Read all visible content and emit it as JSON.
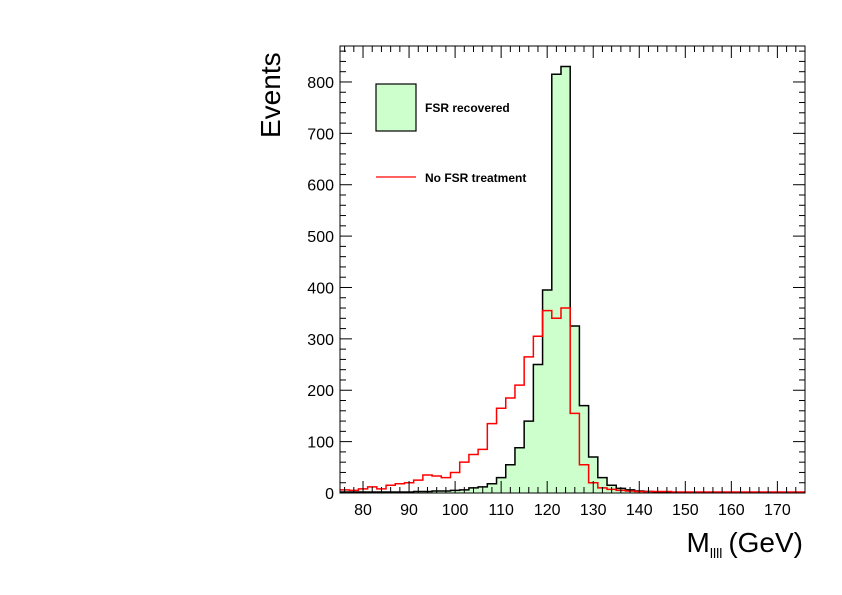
{
  "chart_data": {
    "type": "histogram",
    "xlabel": "M",
    "xlabel_subscript": "llll",
    "xlabel_unit": "(GeV)",
    "ylabel": "Events",
    "xlim": [
      75,
      176
    ],
    "ylim": [
      0,
      870
    ],
    "x_ticks": [
      80,
      90,
      100,
      110,
      120,
      130,
      140,
      150,
      160,
      170
    ],
    "y_ticks": [
      0,
      100,
      200,
      300,
      400,
      500,
      600,
      700,
      800
    ],
    "bin_width": 2,
    "bin_start": 75,
    "legend_position": "top-left",
    "series": [
      {
        "name": "FSR recovered",
        "style": "filled",
        "fill": "#ccffcc",
        "stroke": "#000000",
        "values": [
          2,
          2,
          2,
          2,
          2,
          2,
          2,
          2,
          3,
          3,
          4,
          4,
          5,
          6,
          10,
          12,
          18,
          30,
          55,
          88,
          140,
          250,
          395,
          815,
          830,
          325,
          170,
          70,
          30,
          15,
          9,
          6,
          4,
          3,
          2,
          2,
          1,
          1,
          1,
          1,
          1,
          1,
          1,
          1,
          1,
          1,
          1,
          1,
          1,
          1,
          1
        ]
      },
      {
        "name": "No FSR treatment",
        "style": "line",
        "stroke": "#ff0000",
        "values": [
          6,
          5,
          8,
          12,
          8,
          15,
          18,
          20,
          25,
          35,
          33,
          30,
          40,
          60,
          75,
          85,
          135,
          165,
          185,
          210,
          265,
          305,
          355,
          340,
          360,
          155,
          55,
          20,
          10,
          7,
          5,
          4,
          3,
          3,
          3,
          3,
          2,
          2,
          2,
          2,
          2,
          2,
          2,
          2,
          2,
          2,
          2,
          2,
          2,
          2,
          2
        ]
      }
    ]
  }
}
